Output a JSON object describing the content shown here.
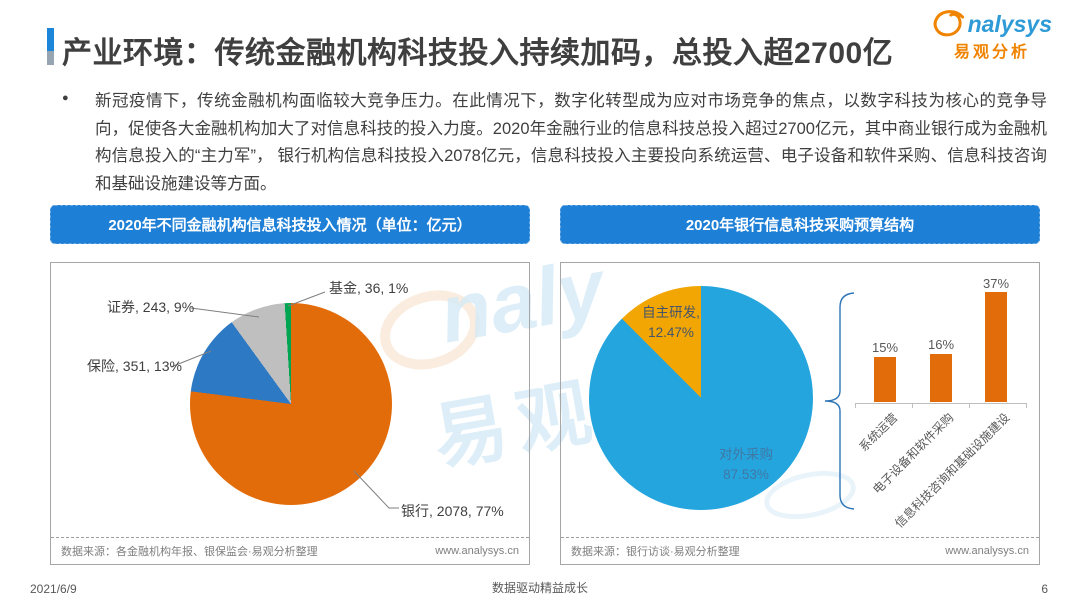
{
  "header": {
    "title": "产业环境：传统金融机构科技投入持续加码，总投入超2700亿",
    "logo": {
      "brand": "nalysys",
      "brand_cn": "易观分析"
    }
  },
  "intro": {
    "bullet_text": "新冠疫情下，传统金融机构面临较大竞争压力。在此情况下，数字化转型成为应对市场竞争的焦点，以数字科技为核心的竞争导向，促使各大金融机构加大了对信息科技的投入力度。2020年金融行业的信息科技总投入超过2700亿元，其中商业银行成为金融机构信息投入的“主力军”， 银行机构信息科技投入2078亿元，信息科技投入主要投向系统运营、电子设备和软件采购、信息科技咨询和基础设施建设等方面。"
  },
  "left_panel": {
    "title": "2020年不同金融机构信息科技投入情况（单位：亿元）",
    "source": "数据来源：各金融机构年报、银保监会·易观分析整理",
    "website": "www.analysys.cn"
  },
  "right_panel": {
    "title": "2020年银行信息科技采购预算结构",
    "source": "数据来源：银行访谈·易观分析整理",
    "website": "www.analysys.cn"
  },
  "footer": {
    "date": "2021/6/9",
    "slogan": "数据驱动精益成长",
    "page": "6"
  },
  "chart_data": [
    {
      "type": "pie",
      "title": "2020年不同金融机构信息科技投入情况（单位：亿元）",
      "unit": "亿元",
      "direction": "clockwise",
      "start_angle": "12-oclock",
      "legend_position": "none",
      "slices": [
        {
          "label": "银行",
          "value": 2078,
          "pct": 77,
          "color": "#E36C0A",
          "display": "银行, 2078, 77%"
        },
        {
          "label": "保险",
          "value": 351,
          "pct": 13,
          "color": "#2E79C4",
          "display": "保险, 351, 13%"
        },
        {
          "label": "证券",
          "value": 243,
          "pct": 9,
          "color": "#BFBFBF",
          "display": "证券, 243, 9%"
        },
        {
          "label": "基金",
          "value": 36,
          "pct": 1,
          "color": "#00A551",
          "display": "基金, 36, 1%"
        }
      ]
    },
    {
      "type": "pie",
      "title": "2020年银行信息科技采购预算结构",
      "direction": "clockwise",
      "start_angle": "12-oclock",
      "slices": [
        {
          "label": "对外采购",
          "pct": 87.53,
          "color": "#25A5DE",
          "display_name": "对外采购",
          "display_pct": "87.53%"
        },
        {
          "label": "自主研发",
          "pct": 12.47,
          "color": "#F2A604",
          "display_name": "自主研发,",
          "display_pct": "12.47%"
        }
      ]
    },
    {
      "type": "bar",
      "categories": [
        "系统运营",
        "电子设备和软件采购",
        "信息科技咨询和基础设施建设"
      ],
      "values": [
        15,
        16,
        37
      ],
      "labels": [
        "15%",
        "16%",
        "37%"
      ],
      "bar_color": "#E36C0A",
      "ylim": [
        0,
        40
      ],
      "grid": false
    }
  ]
}
